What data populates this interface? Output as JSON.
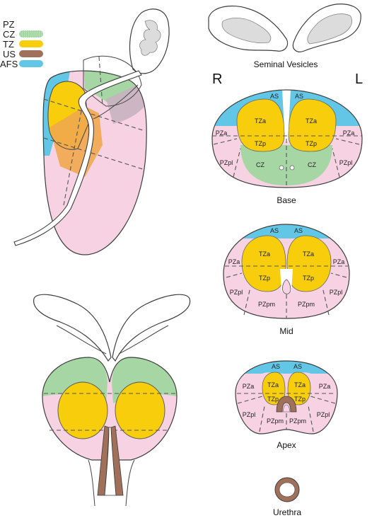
{
  "colors": {
    "pz": "#f6d2e3",
    "cz": "#a6d6a4",
    "tz": "#f7cd0c",
    "us": "#a0705a",
    "afs": "#62c6e6",
    "outline": "#3d3d3d",
    "vesicle": "#ffffff"
  },
  "legend": [
    {
      "label": "PZ",
      "color": "#f6d2e3",
      "swatch": "none"
    },
    {
      "label": "CZ",
      "color": "#a6d6a4",
      "swatch": "dots"
    },
    {
      "label": "TZ",
      "color": "#f7cd0c",
      "swatch": "pill"
    },
    {
      "label": "US",
      "color": "#a0705a",
      "swatch": "pill"
    },
    {
      "label": "AFS",
      "color": "#62c6e6",
      "swatch": "pill"
    }
  ],
  "side_labels": {
    "right": "R",
    "left": "L"
  },
  "captions": {
    "seminal_vesicles": "Seminal Vesicles",
    "base": "Base",
    "mid": "Mid",
    "apex": "Apex",
    "urethra": "Urethra"
  },
  "sections": {
    "base": {
      "as_left": "AS",
      "as_right": "AS",
      "tza_left": "TZa",
      "tza_right": "TZa",
      "tzp_left": "TZp",
      "tzp_right": "TZp",
      "pza_left": "PZa",
      "pza_right": "PZa",
      "pzpl_left": "PZpl",
      "pzpl_right": "PZpl",
      "cz_left": "CZ",
      "cz_right": "CZ"
    },
    "mid": {
      "as_left": "AS",
      "as_right": "AS",
      "tza_left": "TZa",
      "tza_right": "TZa",
      "tzp_left": "TZp",
      "tzp_right": "TZp",
      "pza_left": "PZa",
      "pza_right": "PZa",
      "pzpl_left": "PZpl",
      "pzpl_right": "PZpl",
      "pzpm_left": "PZpm",
      "pzpm_right": "PZpm"
    },
    "apex": {
      "as_left": "AS",
      "as_right": "AS",
      "tza_left": "TZa",
      "tza_right": "TZa",
      "tzp_left": "TZp",
      "tzp_right": "TZp",
      "pza_left": "PZa",
      "pza_right": "PZa",
      "pzpl_left": "PZpl",
      "pzpl_right": "PZpl",
      "pzpm_left": "PZpm",
      "pzpm_right": "PZpm"
    }
  }
}
